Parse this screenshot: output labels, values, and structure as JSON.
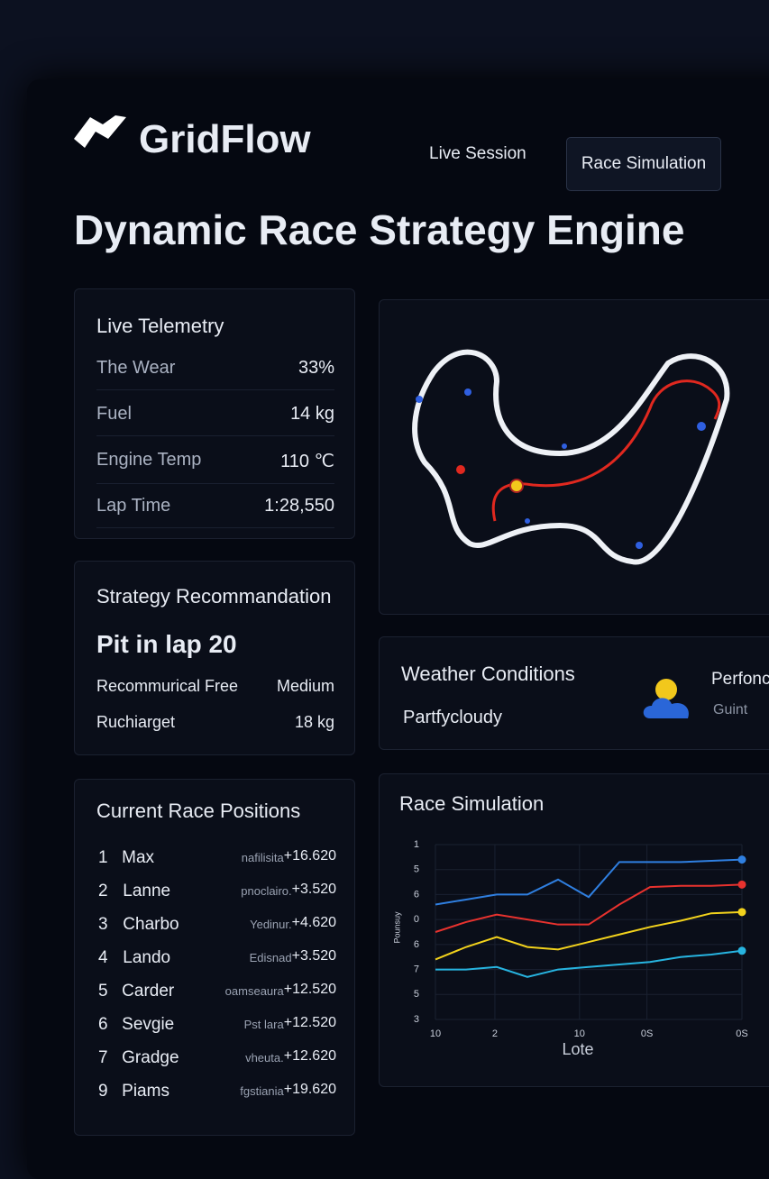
{
  "header": {
    "logo": "GridFlow",
    "nav": [
      "Live Session",
      "Race Simulation"
    ]
  },
  "title": "Dynamic Race Strategy Engine",
  "telemetry": {
    "title": "Live Telemetry",
    "rows": [
      [
        "The Wear",
        "33%"
      ],
      [
        "Fuel",
        "14 kg"
      ],
      [
        "Engine Temp",
        "110 ℃"
      ],
      [
        "Lap Time",
        "1:28,550"
      ]
    ]
  },
  "strategy": {
    "title": "Strategy Recommandation",
    "headline": "Pit in lap 20",
    "rows": [
      [
        "Recommurical Free",
        "Medium"
      ],
      [
        "Ruchiarget",
        "18 kg"
      ]
    ]
  },
  "weather": {
    "title": "Weather Conditions",
    "condition": "Partfycloudy",
    "side_title": "Perfonc",
    "side_value": "Guint"
  },
  "positions": {
    "title": "Current Race Positions",
    "rows": [
      [
        "1",
        "Max",
        "nafilisita",
        "+16.620"
      ],
      [
        "2",
        "Lanne",
        "pnoclairo.",
        "+3.520"
      ],
      [
        "3",
        "Charbo",
        "Yedinur.",
        "+4.620"
      ],
      [
        "4",
        "Lando",
        "Edisnad",
        "+3.520"
      ],
      [
        "5",
        "Carder",
        "oamseaura",
        "+12.520"
      ],
      [
        "6",
        "Sevgie",
        "Pst lara",
        "+12.520"
      ],
      [
        "7",
        "Gradge",
        "vheuta.",
        "+12.620"
      ],
      [
        "9",
        "Piams",
        "fgstiania",
        "+19.620"
      ]
    ]
  },
  "chart_data": {
    "type": "line",
    "title": "Race Simulation",
    "x_label": "Lote",
    "y_label": "Pounsuy",
    "x": [
      0,
      1,
      2,
      3,
      4,
      5,
      6,
      7,
      8,
      9,
      10
    ],
    "xlim": [
      0,
      10
    ],
    "xticks": [
      {
        "value": 0,
        "label": "10"
      },
      {
        "value": 1.94,
        "label": "2"
      },
      {
        "value": 4.7,
        "label": "10"
      },
      {
        "value": 6.9,
        "label": "0S"
      },
      {
        "value": 10,
        "label": "0S"
      }
    ],
    "ylim": [
      0,
      7
    ],
    "yticks": [
      {
        "value": 7,
        "label": "1"
      },
      {
        "value": 6,
        "label": "5"
      },
      {
        "value": 5,
        "label": "6"
      },
      {
        "value": 4,
        "label": "0"
      },
      {
        "value": 3,
        "label": "6"
      },
      {
        "value": 2,
        "label": "7"
      },
      {
        "value": 1,
        "label": "5"
      },
      {
        "value": 0,
        "label": "3"
      }
    ],
    "grid": true,
    "series": [
      {
        "color": "#2f7fe0",
        "values": [
          4.6,
          4.8,
          5.0,
          5.0,
          5.6,
          4.9,
          6.3,
          6.3,
          6.3,
          6.35,
          6.4
        ]
      },
      {
        "color": "#e8322e",
        "values": [
          3.5,
          3.9,
          4.2,
          4.0,
          3.8,
          3.8,
          4.6,
          5.3,
          5.35,
          5.35,
          5.4
        ]
      },
      {
        "color": "#f2d21c",
        "values": [
          2.4,
          2.9,
          3.3,
          2.9,
          2.8,
          3.1,
          3.4,
          3.7,
          3.95,
          4.25,
          4.3
        ]
      },
      {
        "color": "#27b4e0",
        "values": [
          2.0,
          2.0,
          2.1,
          1.7,
          2.0,
          2.1,
          2.2,
          2.3,
          2.5,
          2.6,
          2.75
        ]
      }
    ]
  }
}
